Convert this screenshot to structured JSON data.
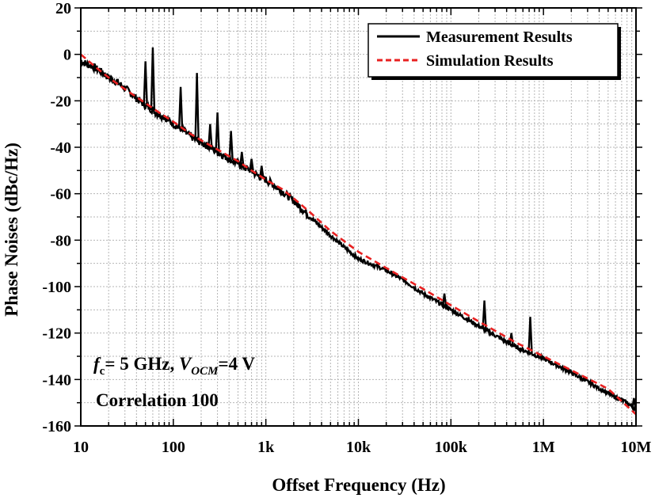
{
  "chart_data": {
    "type": "line",
    "title": "",
    "xlabel": "Offset Frequency (Hz)",
    "ylabel": "Phase Noises (dBc/Hz)",
    "xscale": "log",
    "xlim": [
      10,
      10000000
    ],
    "ylim": [
      -160,
      20
    ],
    "grid": true,
    "legend_position": "top-right",
    "x_ticks": [
      {
        "value": 10,
        "label": "10"
      },
      {
        "value": 100,
        "label": "100"
      },
      {
        "value": 1000,
        "label": "1k"
      },
      {
        "value": 10000,
        "label": "10k"
      },
      {
        "value": 100000,
        "label": "100k"
      },
      {
        "value": 1000000,
        "label": "1M"
      },
      {
        "value": 10000000,
        "label": "10M"
      }
    ],
    "y_ticks": [
      {
        "value": 20,
        "label": "20"
      },
      {
        "value": 0,
        "label": "0"
      },
      {
        "value": -20,
        "label": "-20"
      },
      {
        "value": -40,
        "label": "-40"
      },
      {
        "value": -60,
        "label": "-60"
      },
      {
        "value": -80,
        "label": "-80"
      },
      {
        "value": -100,
        "label": "-100"
      },
      {
        "value": -120,
        "label": "-120"
      },
      {
        "value": -140,
        "label": "-140"
      },
      {
        "value": -160,
        "label": "-160"
      }
    ],
    "series": [
      {
        "name": "Measurement Results",
        "color": "#000000",
        "style": "solid",
        "x": [
          10,
          13,
          16,
          20,
          25,
          31,
          40,
          50,
          60,
          70,
          80,
          100,
          120,
          150,
          180,
          200,
          250,
          300,
          400,
          500,
          600,
          700,
          800,
          1000,
          1200,
          1500,
          2000,
          3000,
          5000,
          7000,
          10000,
          20000,
          30000,
          50000,
          100000,
          200000,
          300000,
          500000,
          1000000,
          2000000,
          3000000,
          5000000,
          8000000,
          10000000
        ],
        "y": [
          -3,
          -5,
          -7,
          -10,
          -12,
          -15,
          -19,
          -22,
          -24,
          -26,
          -27,
          -30,
          -32,
          -35,
          -37,
          -38,
          -40,
          -42,
          -45,
          -47,
          -49,
          -50,
          -52,
          -54,
          -56,
          -59,
          -63,
          -70,
          -78,
          -83,
          -88,
          -93,
          -97,
          -103,
          -110,
          -117,
          -121,
          -126,
          -131,
          -137,
          -141,
          -146,
          -150,
          -153
        ]
      },
      {
        "name": "Simulation Results",
        "color": "#e82020",
        "style": "dashed",
        "x": [
          10,
          15,
          20,
          30,
          50,
          70,
          100,
          150,
          200,
          300,
          500,
          700,
          1000,
          1500,
          2000,
          3000,
          5000,
          10000,
          20000,
          30000,
          50000,
          100000,
          200000,
          300000,
          500000,
          1000000,
          2000000,
          5000000,
          10000000
        ],
        "y": [
          0,
          -6,
          -10,
          -15,
          -21,
          -25,
          -29,
          -34,
          -37,
          -41,
          -46,
          -50,
          -54,
          -58,
          -62,
          -68,
          -76,
          -85,
          -92,
          -96,
          -101,
          -108,
          -115,
          -119,
          -124,
          -130,
          -136,
          -144,
          -155
        ]
      }
    ],
    "spurs": [
      {
        "x": 50,
        "y": -3
      },
      {
        "x": 60,
        "y": 3
      },
      {
        "x": 120,
        "y": -14
      },
      {
        "x": 180,
        "y": -8
      },
      {
        "x": 250,
        "y": -30
      },
      {
        "x": 300,
        "y": -25
      },
      {
        "x": 420,
        "y": -33
      },
      {
        "x": 550,
        "y": -42
      },
      {
        "x": 700,
        "y": -45
      },
      {
        "x": 900,
        "y": -48
      },
      {
        "x": 85000,
        "y": -103
      },
      {
        "x": 230000,
        "y": -106
      },
      {
        "x": 450000,
        "y": -120
      },
      {
        "x": 720000,
        "y": -113
      },
      {
        "x": 9500000,
        "y": -148
      }
    ],
    "annotations": {
      "condition_prefix": "f",
      "condition_sub_c": "c",
      "condition_mid": "= 5 GHz, ",
      "condition_v": "V",
      "condition_sub_ocm": "OCM",
      "condition_suffix": "=4 V",
      "correlation": "Correlation 100"
    }
  }
}
